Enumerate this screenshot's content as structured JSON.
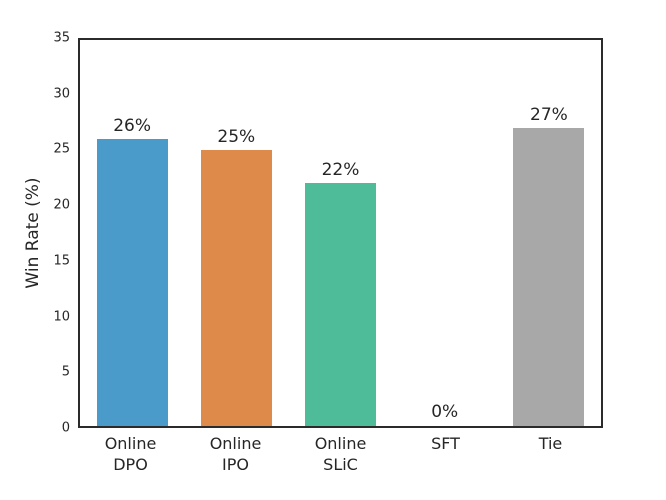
{
  "chart_data": {
    "type": "bar",
    "title": "",
    "xlabel": "",
    "ylabel": "Win Rate (%)",
    "categories": [
      "Online\nDPO",
      "Online\nIPO",
      "Online\nSLiC",
      "SFT",
      "Tie"
    ],
    "values": [
      26,
      25,
      22,
      0,
      27
    ],
    "bar_labels": [
      "26%",
      "25%",
      "22%",
      "0%",
      "27%"
    ],
    "colors": [
      "#4a9bc9",
      "#dd8a4b",
      "#4ebc99",
      null,
      "#a8a8a8"
    ],
    "ylim": [
      0,
      35
    ],
    "yticks": [
      0,
      5,
      10,
      15,
      20,
      25,
      30,
      35
    ],
    "grid": false,
    "legend": "none",
    "frame_color": "#2b2b2b",
    "text_color": "#262626"
  }
}
